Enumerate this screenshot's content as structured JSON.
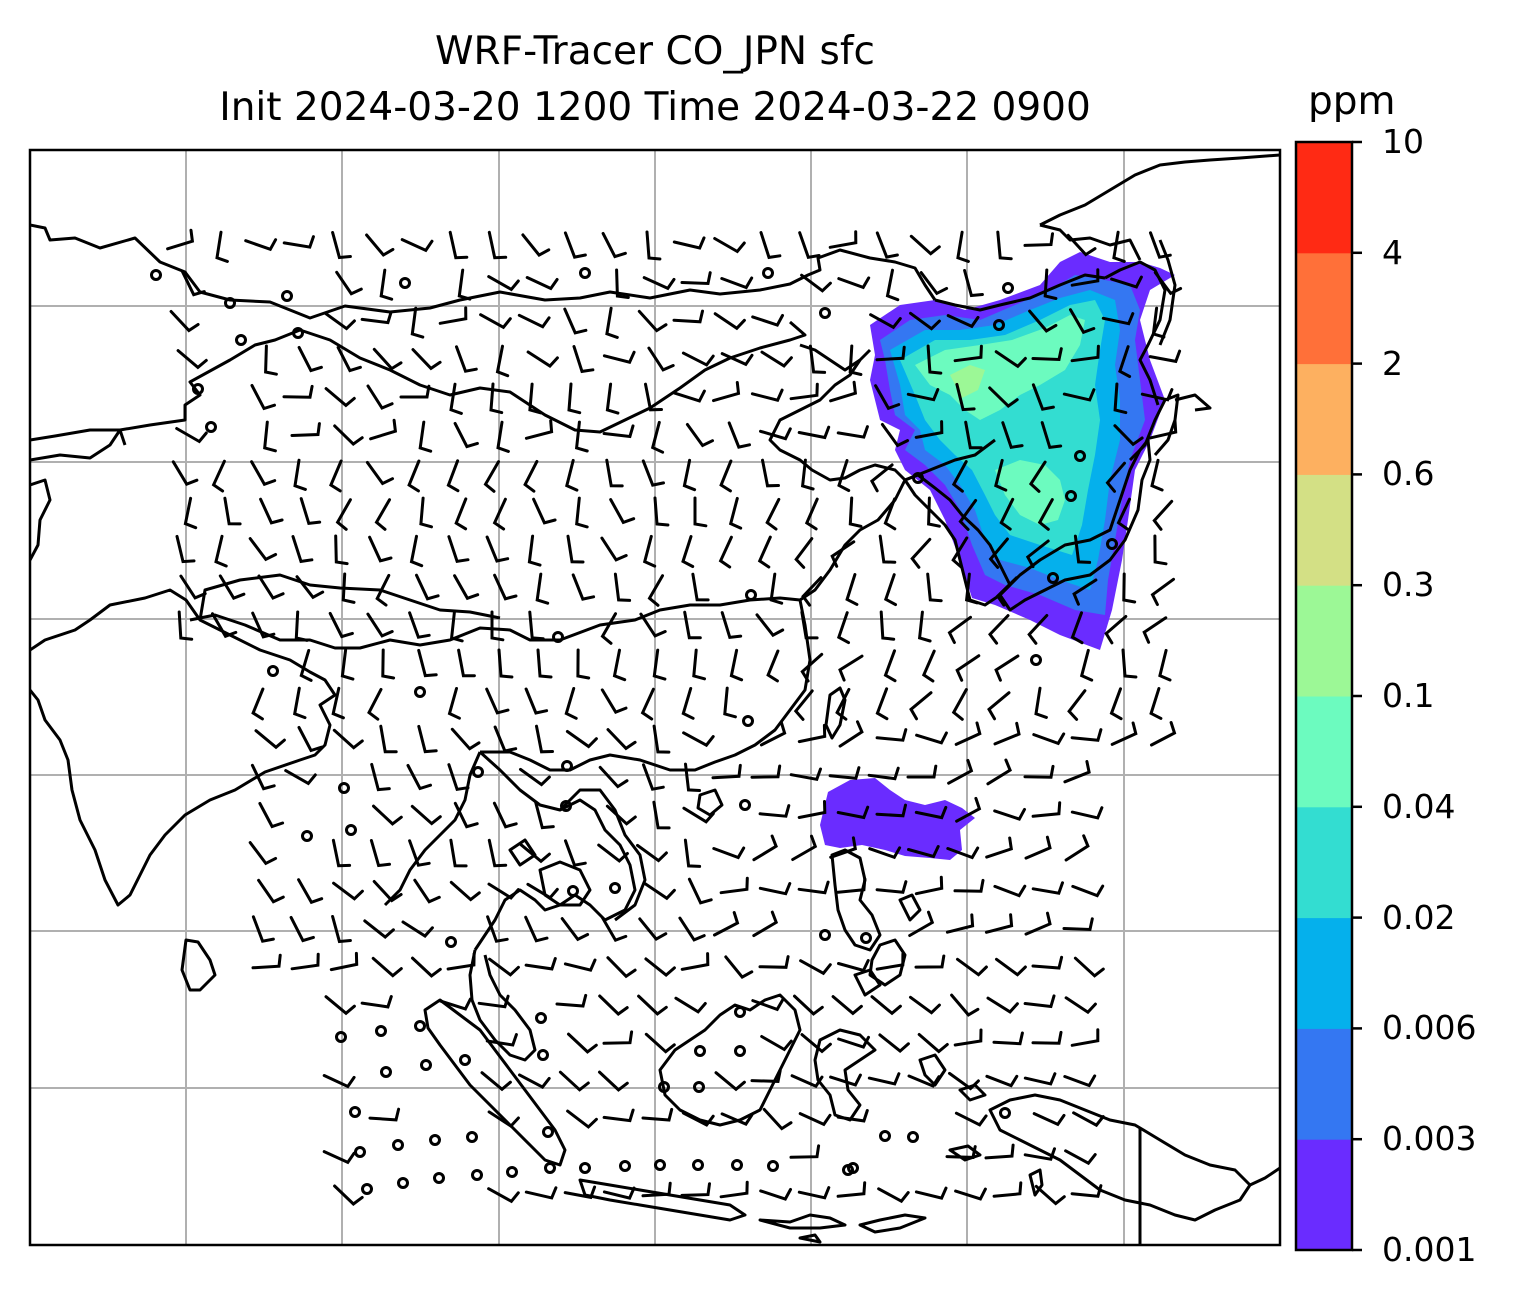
{
  "title": {
    "line1": "WRF-Tracer CO_JPN sfc",
    "line2": "Init 2024-03-20 1200 Time 2024-03-22 0900"
  },
  "colorbar": {
    "unit": "ppm",
    "levels": [
      "0.001",
      "0.003",
      "0.006",
      "0.02",
      "0.04",
      "0.1",
      "0.3",
      "0.6",
      "2",
      "4",
      "10"
    ],
    "colors": [
      "#6a2cff",
      "#3477f2",
      "#05b0ec",
      "#33ddd1",
      "#6cfbbf",
      "#9cf896",
      "#d3e085",
      "#fdb060",
      "#ff7039",
      "#ff2a14"
    ]
  },
  "map": {
    "gridlines": true,
    "coastline_color": "#000000",
    "grid_color": "#b0b0b0",
    "plume_colors": {
      "low": "#6a2cff",
      "mid1": "#3477f2",
      "mid2": "#05b0ec",
      "mid3": "#33ddd1",
      "high": "#6cfbbf",
      "peak": "#9cf896"
    }
  }
}
